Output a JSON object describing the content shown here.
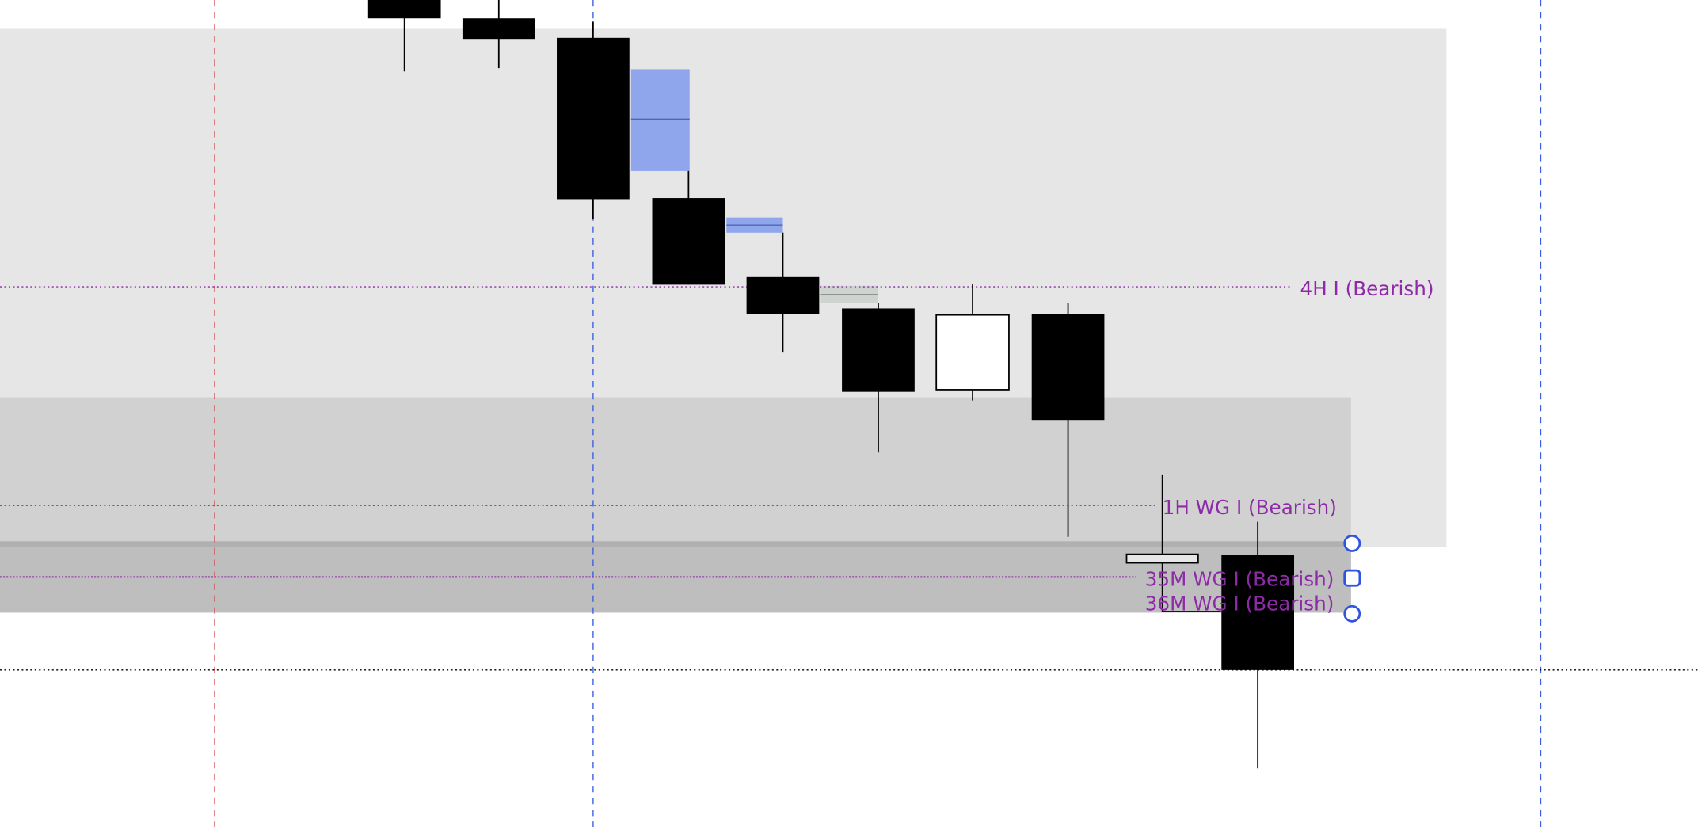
{
  "colors": {
    "background": "#ffffff",
    "zone_4h": "#e6e6e6",
    "zone_1h": "#d1d1d1",
    "zone_35m": "#bebebe",
    "zone_35m_edge": "#b0b0b0",
    "bear_candle": "#000000",
    "bull_candle": "#ffffff",
    "fvg_blue": "#8fa5ec",
    "fvg_blue_mid": "#4f66b8",
    "fvg_gray": "#cfd3d0",
    "level_label": "#8e2aa8",
    "session_red": "#d04040",
    "session_blue": "#3a5ee0",
    "handle": "#2f55e0"
  },
  "levels": [
    {
      "label": "4H I (Bearish)"
    },
    {
      "label": "1H WG I (Bearish)"
    },
    {
      "label": "35M WG I (Bearish)"
    },
    {
      "label": "36M WG I (Bearish)"
    }
  ],
  "icons": {
    "handle_top": "circle-handle",
    "handle_mid": "square-handle",
    "handle_bottom": "circle-handle"
  }
}
